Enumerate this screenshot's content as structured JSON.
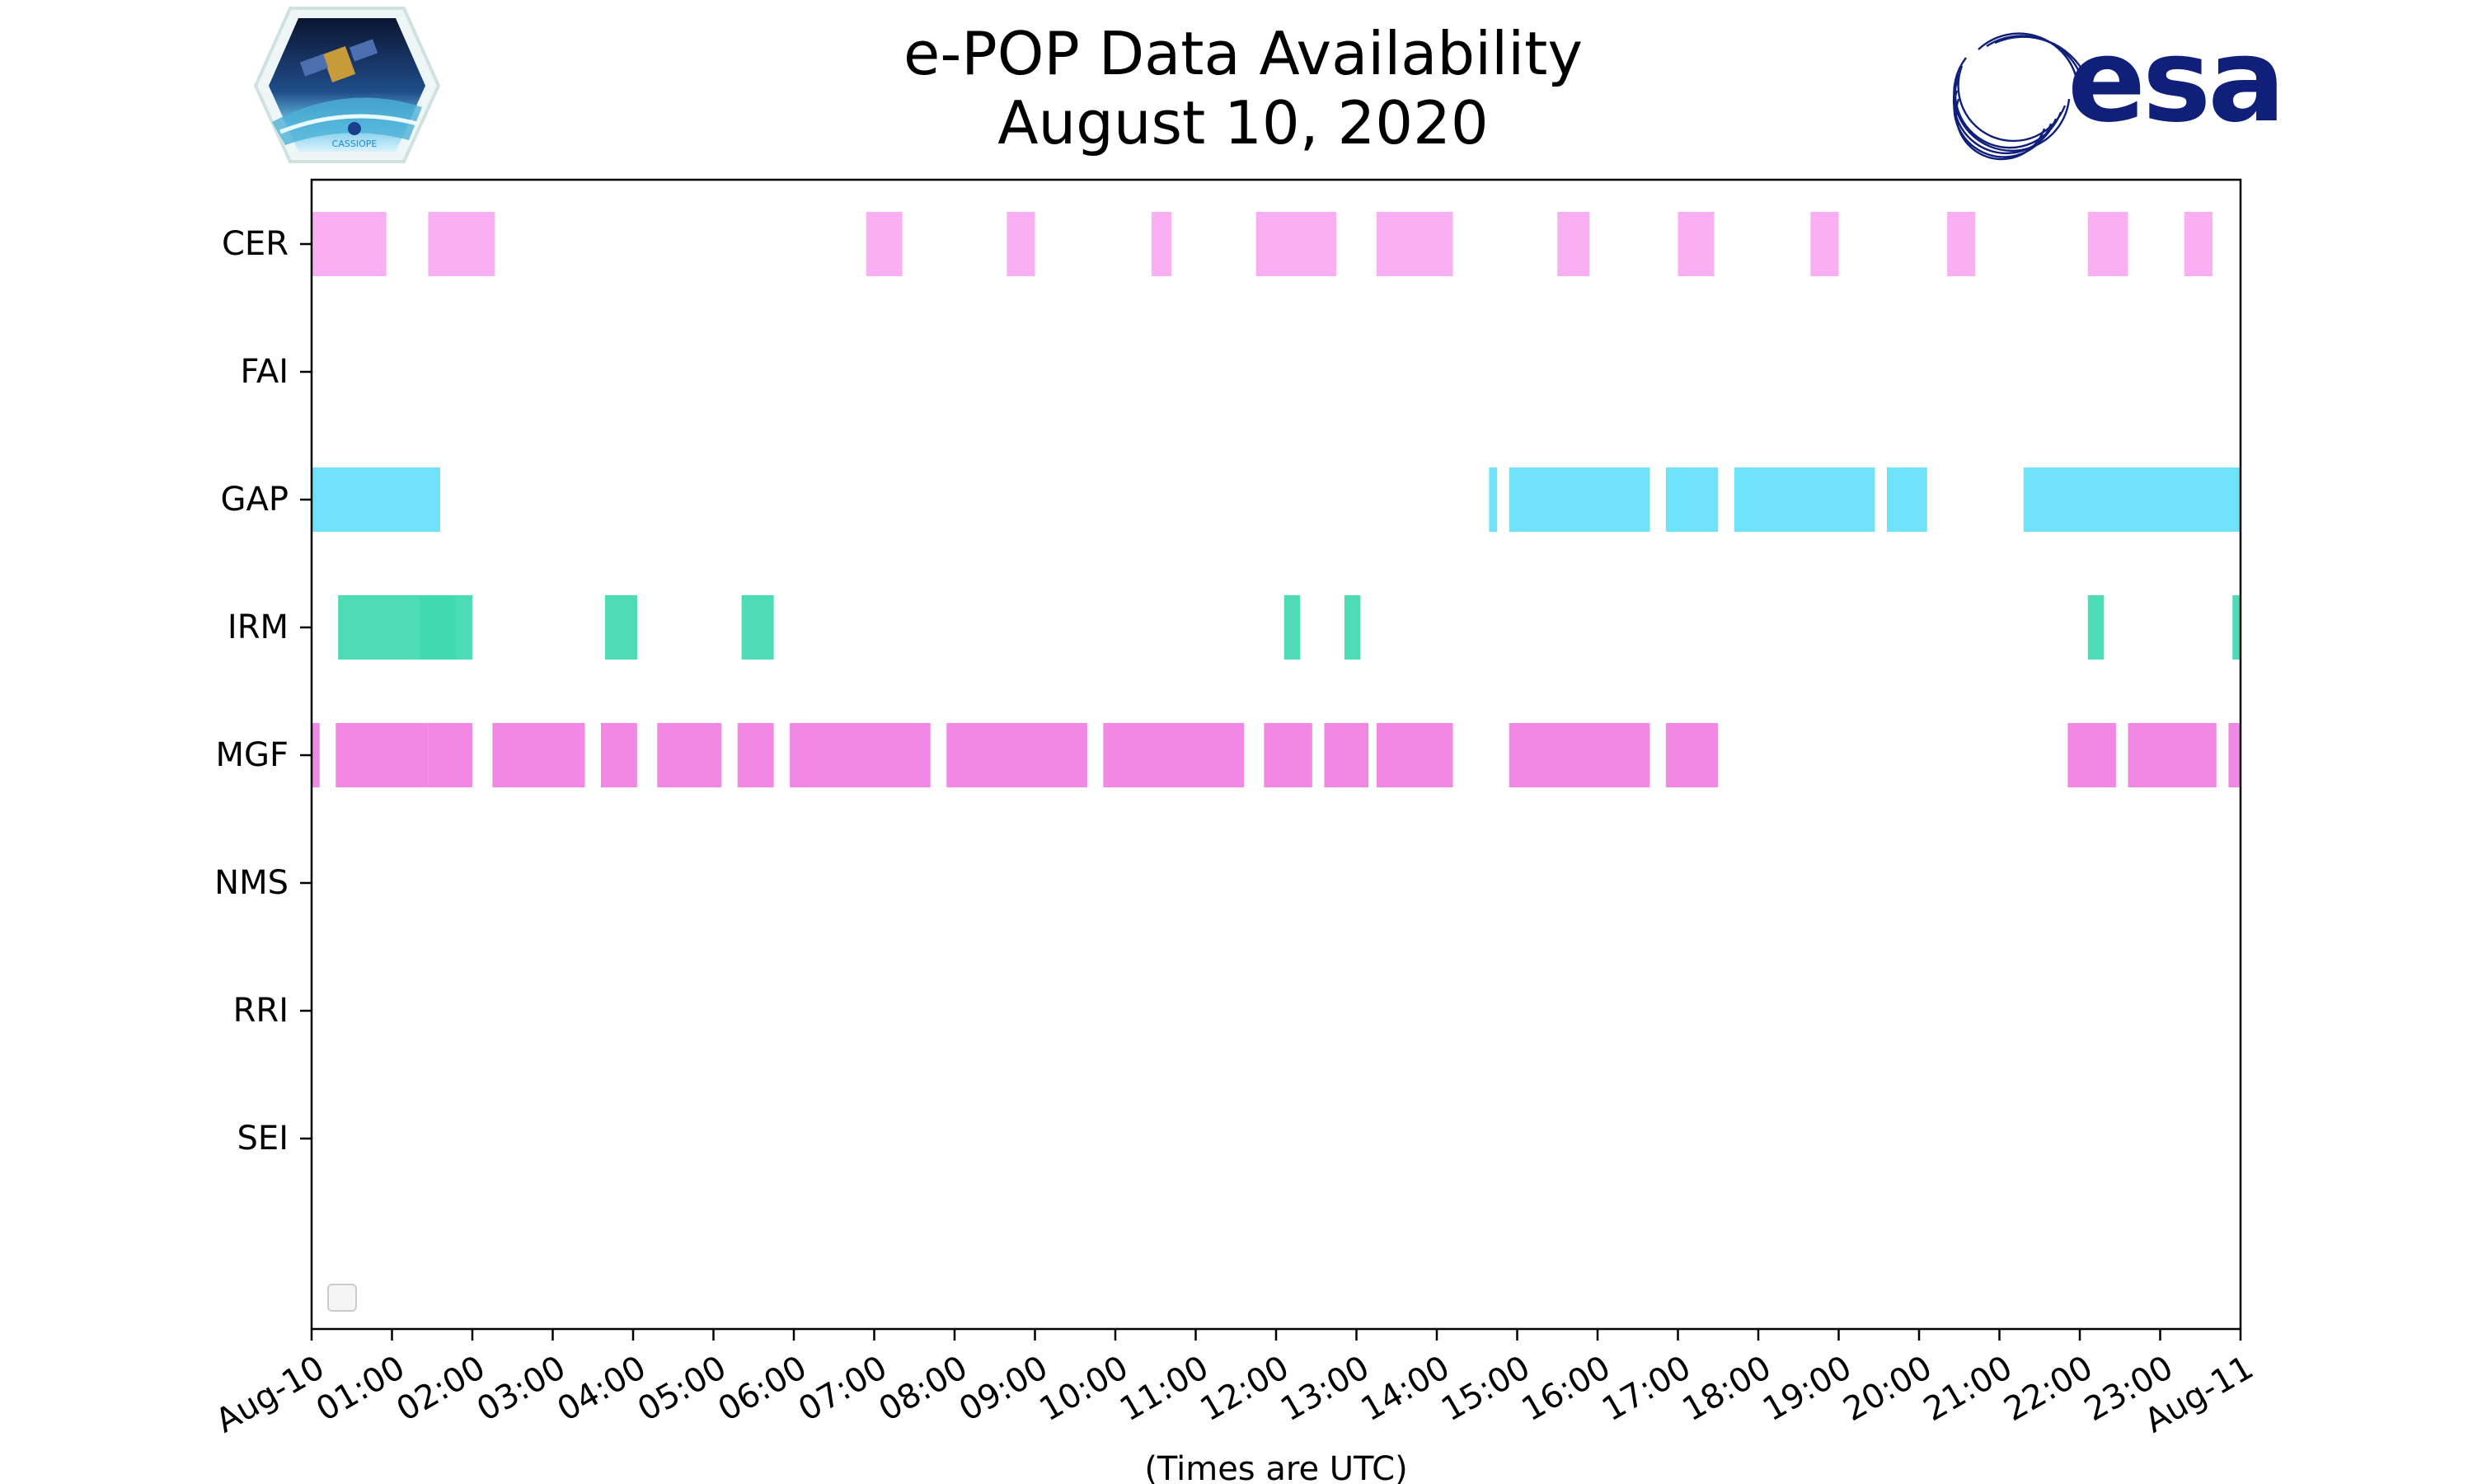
{
  "chart_data": {
    "type": "bar",
    "orientation": "horizontal-timeline",
    "title": "e-POP Data Availability",
    "subtitle": "August 10, 2020",
    "xlabel": "(Times are UTC)",
    "ylabel": "",
    "xlim": [
      0,
      24
    ],
    "x_unit": "hours UTC",
    "x_tick_labels": [
      "Aug-10",
      "01:00",
      "02:00",
      "03:00",
      "04:00",
      "05:00",
      "06:00",
      "07:00",
      "08:00",
      "09:00",
      "10:00",
      "11:00",
      "12:00",
      "13:00",
      "14:00",
      "15:00",
      "16:00",
      "17:00",
      "18:00",
      "19:00",
      "20:00",
      "21:00",
      "22:00",
      "23:00",
      "Aug-11"
    ],
    "categories": [
      "CER",
      "FAI",
      "GAP",
      "IRM",
      "MGF",
      "NMS",
      "RRI",
      "SEI"
    ],
    "grid": false,
    "legend": "lower-left (empty)",
    "series": [
      {
        "instrument": "CER",
        "color": "#fba8f2",
        "intervals": [
          [
            0.0,
            0.93
          ],
          [
            1.45,
            2.28
          ],
          [
            6.9,
            7.35
          ],
          [
            8.65,
            9.0
          ],
          [
            10.45,
            10.7
          ],
          [
            11.75,
            12.75
          ],
          [
            13.25,
            14.2
          ],
          [
            15.5,
            15.9
          ],
          [
            17.0,
            17.45
          ],
          [
            18.65,
            19.0
          ],
          [
            20.35,
            20.7
          ],
          [
            22.1,
            22.6
          ],
          [
            23.3,
            23.65
          ]
        ]
      },
      {
        "instrument": "FAI",
        "color": "#ff9900",
        "intervals": []
      },
      {
        "instrument": "GAP",
        "color": "#62e0f8",
        "intervals": [
          [
            0.0,
            1.6
          ],
          [
            14.65,
            14.75
          ],
          [
            14.9,
            16.65
          ],
          [
            16.85,
            17.5
          ],
          [
            17.7,
            19.45
          ],
          [
            19.6,
            20.1
          ],
          [
            21.3,
            24.0
          ]
        ]
      },
      {
        "instrument": "IRM",
        "color": "#3fd9b0",
        "intervals": [
          [
            0.33,
            1.45
          ],
          [
            1.35,
            1.8
          ],
          [
            1.45,
            2.0
          ],
          [
            3.65,
            4.05
          ],
          [
            5.35,
            5.75
          ],
          [
            12.1,
            12.3
          ],
          [
            12.85,
            13.05
          ],
          [
            22.1,
            22.3
          ],
          [
            23.9,
            24.0
          ]
        ]
      },
      {
        "instrument": "MGF",
        "color": "#f07fe2",
        "intervals": [
          [
            0.0,
            0.1
          ],
          [
            0.3,
            1.45
          ],
          [
            1.45,
            2.0
          ],
          [
            2.25,
            3.4
          ],
          [
            3.6,
            4.05
          ],
          [
            4.3,
            5.1
          ],
          [
            5.3,
            5.75
          ],
          [
            5.95,
            7.7
          ],
          [
            7.9,
            9.65
          ],
          [
            9.85,
            11.6
          ],
          [
            11.85,
            12.45
          ],
          [
            12.6,
            13.15
          ],
          [
            13.25,
            14.2
          ],
          [
            14.9,
            16.65
          ],
          [
            16.85,
            17.5
          ],
          [
            21.85,
            22.45
          ],
          [
            22.6,
            23.7
          ],
          [
            23.85,
            24.0
          ]
        ]
      },
      {
        "instrument": "NMS",
        "color": "#9966ff",
        "intervals": []
      },
      {
        "instrument": "RRI",
        "color": "#66cc33",
        "intervals": []
      },
      {
        "instrument": "SEI",
        "color": "#ff6666",
        "intervals": []
      }
    ]
  },
  "logos": {
    "left_caption": "CASSIOPE",
    "right_text": "esa",
    "esa_color": "#0f1f7a"
  }
}
